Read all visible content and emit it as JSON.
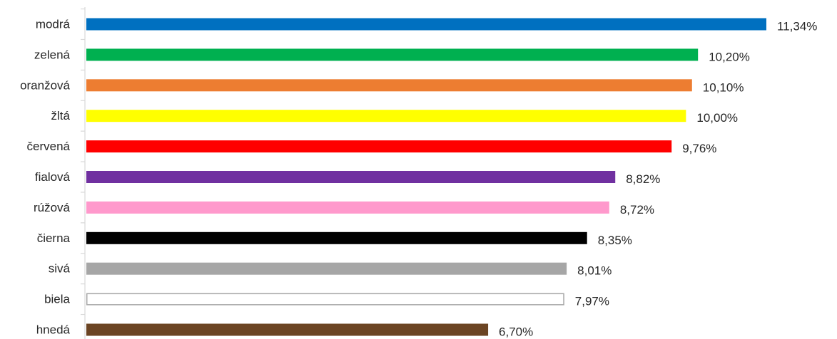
{
  "chart_data": {
    "type": "bar",
    "orientation": "horizontal",
    "categories": [
      "modrá",
      "zelená",
      "oranžová",
      "žltá",
      "červená",
      "fialová",
      "rúžová",
      "čierna",
      "sivá",
      "biela",
      "hnedá"
    ],
    "values": [
      11.34,
      10.2,
      10.1,
      10.0,
      9.76,
      8.82,
      8.72,
      8.35,
      8.01,
      7.97,
      6.7
    ],
    "value_labels": [
      "11,34%",
      "10,20%",
      "10,10%",
      "10,00%",
      "9,76%",
      "8,82%",
      "8,72%",
      "8,35%",
      "8,01%",
      "7,97%",
      "6,70%"
    ],
    "colors": [
      "#0070C0",
      "#00B050",
      "#ED7D31",
      "#FFFF00",
      "#FF0000",
      "#7030A0",
      "#FF99CC",
      "#000000",
      "#A6A6A6",
      "#FFFFFF",
      "#6B4423"
    ],
    "outline_colors": [
      "",
      "",
      "",
      "",
      "",
      "",
      "",
      "",
      "",
      "#A6A6A6",
      ""
    ],
    "xlim": [
      0,
      11.34
    ],
    "grid": false,
    "legend": "none",
    "title": "",
    "xlabel": "",
    "ylabel": ""
  }
}
